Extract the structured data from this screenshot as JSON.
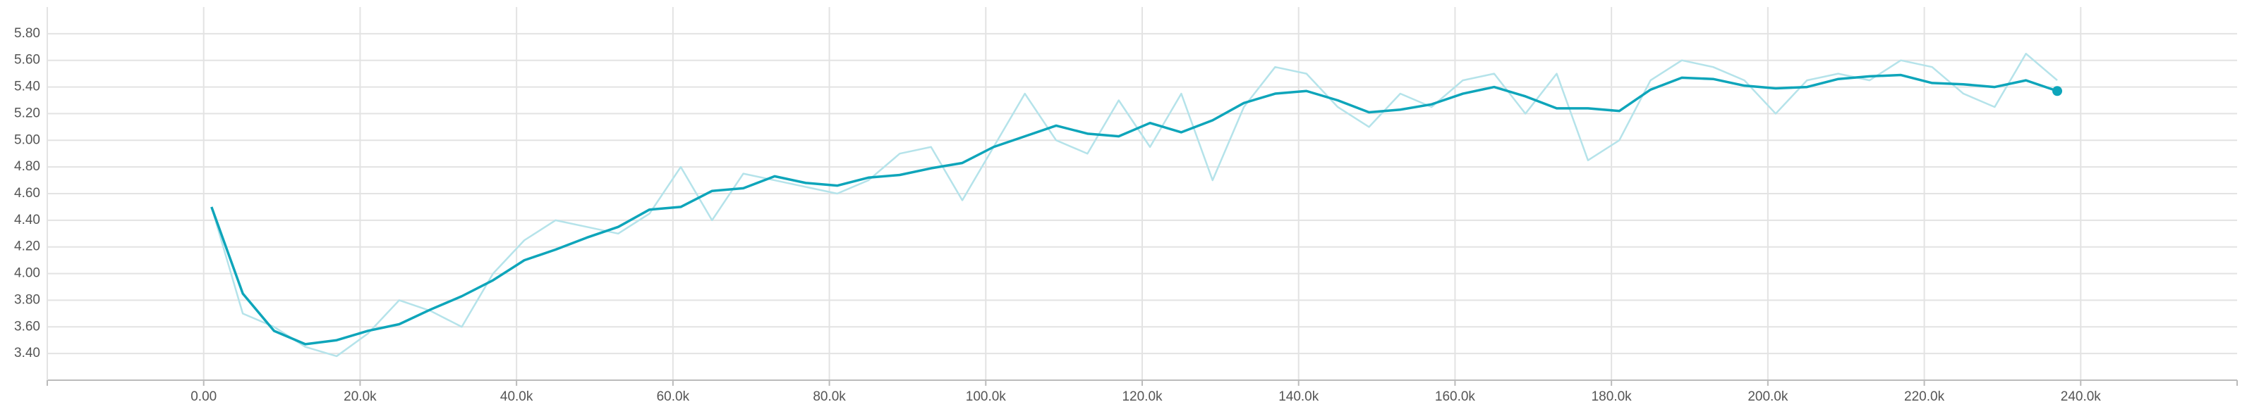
{
  "chart_data": {
    "type": "line",
    "x": [
      1000,
      5000,
      9000,
      13000,
      17000,
      21000,
      25000,
      29000,
      33000,
      37000,
      41000,
      45000,
      49000,
      53000,
      57000,
      61000,
      65000,
      69000,
      73000,
      77000,
      81000,
      85000,
      89000,
      93000,
      97000,
      101000,
      105000,
      109000,
      113000,
      117000,
      121000,
      125000,
      129000,
      133000,
      137000,
      141000,
      145000,
      149000,
      153000,
      157000,
      161000,
      165000,
      169000,
      173000,
      177000,
      181000,
      185000,
      189000,
      193000,
      197000,
      201000,
      205000,
      209000,
      213000,
      217000,
      221000,
      225000,
      229000,
      233000,
      237000
    ],
    "series": [
      {
        "color": "#b5e3ea",
        "values": [
          4.5,
          3.7,
          3.6,
          3.45,
          3.38,
          3.55,
          3.8,
          3.72,
          3.6,
          4.0,
          4.25,
          4.4,
          4.35,
          4.3,
          4.45,
          4.8,
          4.4,
          4.75,
          4.7,
          4.65,
          4.6,
          4.7,
          4.9,
          4.95,
          4.55,
          4.95,
          5.35,
          5.0,
          4.9,
          5.3,
          4.95,
          5.35,
          4.7,
          5.25,
          5.55,
          5.5,
          5.25,
          5.1,
          5.35,
          5.25,
          5.45,
          5.5,
          5.2,
          5.5,
          4.85,
          5.0,
          5.45,
          5.6,
          5.55,
          5.45,
          5.2,
          5.45,
          5.5,
          5.45,
          5.6,
          5.55,
          5.35,
          5.25,
          5.65,
          5.45
        ]
      },
      {
        "color": "#0ea5ba",
        "values": [
          4.5,
          3.85,
          3.57,
          3.47,
          3.5,
          3.57,
          3.62,
          3.73,
          3.83,
          3.95,
          4.1,
          4.18,
          4.27,
          4.35,
          4.48,
          4.5,
          4.62,
          4.64,
          4.73,
          4.68,
          4.66,
          4.72,
          4.74,
          4.79,
          4.83,
          4.95,
          5.03,
          5.11,
          5.05,
          5.03,
          5.13,
          5.06,
          5.15,
          5.28,
          5.35,
          5.37,
          5.3,
          5.21,
          5.23,
          5.27,
          5.35,
          5.4,
          5.33,
          5.24,
          5.24,
          5.22,
          5.38,
          5.47,
          5.46,
          5.41,
          5.39,
          5.4,
          5.46,
          5.48,
          5.49,
          5.43,
          5.42,
          5.4,
          5.45,
          5.37
        ]
      }
    ],
    "xlim": [
      -20000,
      260000
    ],
    "xticks": [
      {
        "value": 0,
        "label": "0.00"
      },
      {
        "value": 20000,
        "label": "20.0k"
      },
      {
        "value": 40000,
        "label": "40.0k"
      },
      {
        "value": 60000,
        "label": "60.0k"
      },
      {
        "value": 80000,
        "label": "80.0k"
      },
      {
        "value": 100000,
        "label": "100.0k"
      },
      {
        "value": 120000,
        "label": "120.0k"
      },
      {
        "value": 140000,
        "label": "140.0k"
      },
      {
        "value": 160000,
        "label": "160.0k"
      },
      {
        "value": 180000,
        "label": "180.0k"
      },
      {
        "value": 200000,
        "label": "200.0k"
      },
      {
        "value": 220000,
        "label": "220.0k"
      },
      {
        "value": 240000,
        "label": "240.0k"
      }
    ],
    "ylim": [
      3.2,
      6.0
    ],
    "yticks": [
      {
        "value": 3.4,
        "label": "3.40"
      },
      {
        "value": 3.6,
        "label": "3.60"
      },
      {
        "value": 3.8,
        "label": "3.80"
      },
      {
        "value": 4.0,
        "label": "4.00"
      },
      {
        "value": 4.2,
        "label": "4.20"
      },
      {
        "value": 4.4,
        "label": "4.40"
      },
      {
        "value": 4.6,
        "label": "4.60"
      },
      {
        "value": 4.8,
        "label": "4.80"
      },
      {
        "value": 5.0,
        "label": "5.00"
      },
      {
        "value": 5.2,
        "label": "5.20"
      },
      {
        "value": 5.4,
        "label": "5.40"
      },
      {
        "value": 5.6,
        "label": "5.60"
      },
      {
        "value": 5.8,
        "label": "5.80"
      }
    ],
    "grid": true
  }
}
